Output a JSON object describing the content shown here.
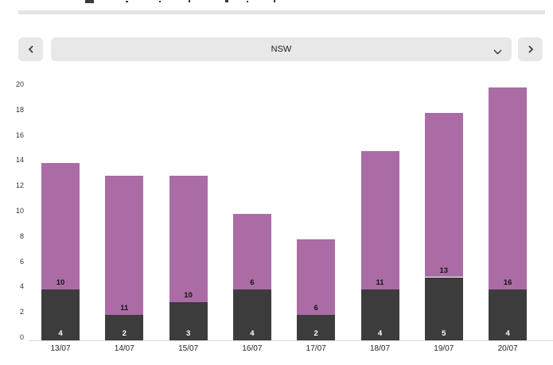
{
  "selector": {
    "selected_state": "NSW"
  },
  "colors": {
    "control_bg": "#e8e8e8",
    "divider_strip": "#e4e4e4",
    "axis_line": "#d9d9d9",
    "axis_text": "#333333"
  },
  "chart_data": {
    "type": "bar",
    "stacked": true,
    "categories": [
      "13/07",
      "14/07",
      "15/07",
      "16/07",
      "17/07",
      "18/07",
      "19/07",
      "20/07"
    ],
    "series": [
      {
        "name": "dark-gray-segment",
        "color": "#3c3c3c",
        "label_color": "#ffffff",
        "values": [
          4,
          2,
          3,
          4,
          2,
          4,
          5,
          4
        ]
      },
      {
        "name": "purple-segment",
        "color": "#ab6ca6",
        "label_color": "#141414",
        "values": [
          10,
          11,
          10,
          6,
          6,
          11,
          13,
          16
        ]
      }
    ],
    "totals": [
      14,
      13,
      13,
      10,
      8,
      15,
      18,
      20
    ],
    "yticks": [
      0,
      2,
      4,
      6,
      8,
      10,
      12,
      14,
      16,
      18,
      20
    ],
    "ylim": [
      0,
      20
    ],
    "xlabel": "",
    "ylabel": "",
    "title": "",
    "grid": false,
    "legend": "none",
    "data_labels": true
  }
}
